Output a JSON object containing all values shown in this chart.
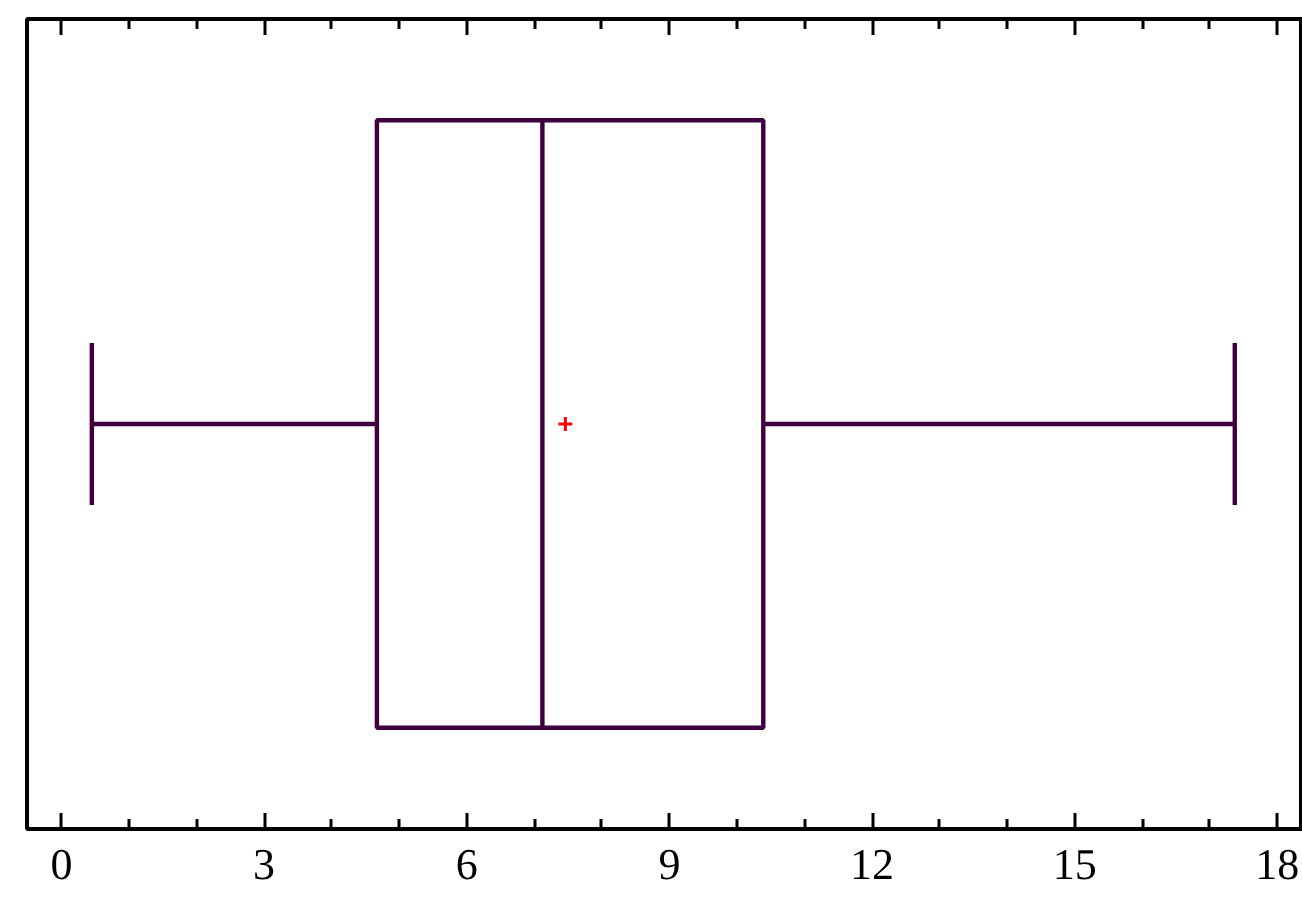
{
  "chart_data": {
    "type": "box",
    "orientation": "horizontal",
    "categories": [
      null
    ],
    "color": "#3f0040",
    "boxes": [
      {
        "low": 0.45,
        "q1": 4.67,
        "median": 7.12,
        "q3": 10.39,
        "high": 17.37,
        "mean": 7.46
      }
    ],
    "xlim": [
      -0.51,
      18.38
    ],
    "xticks": [
      0,
      3,
      6,
      9,
      12,
      15,
      18
    ],
    "tick_labels": "x",
    "grid": false
  }
}
